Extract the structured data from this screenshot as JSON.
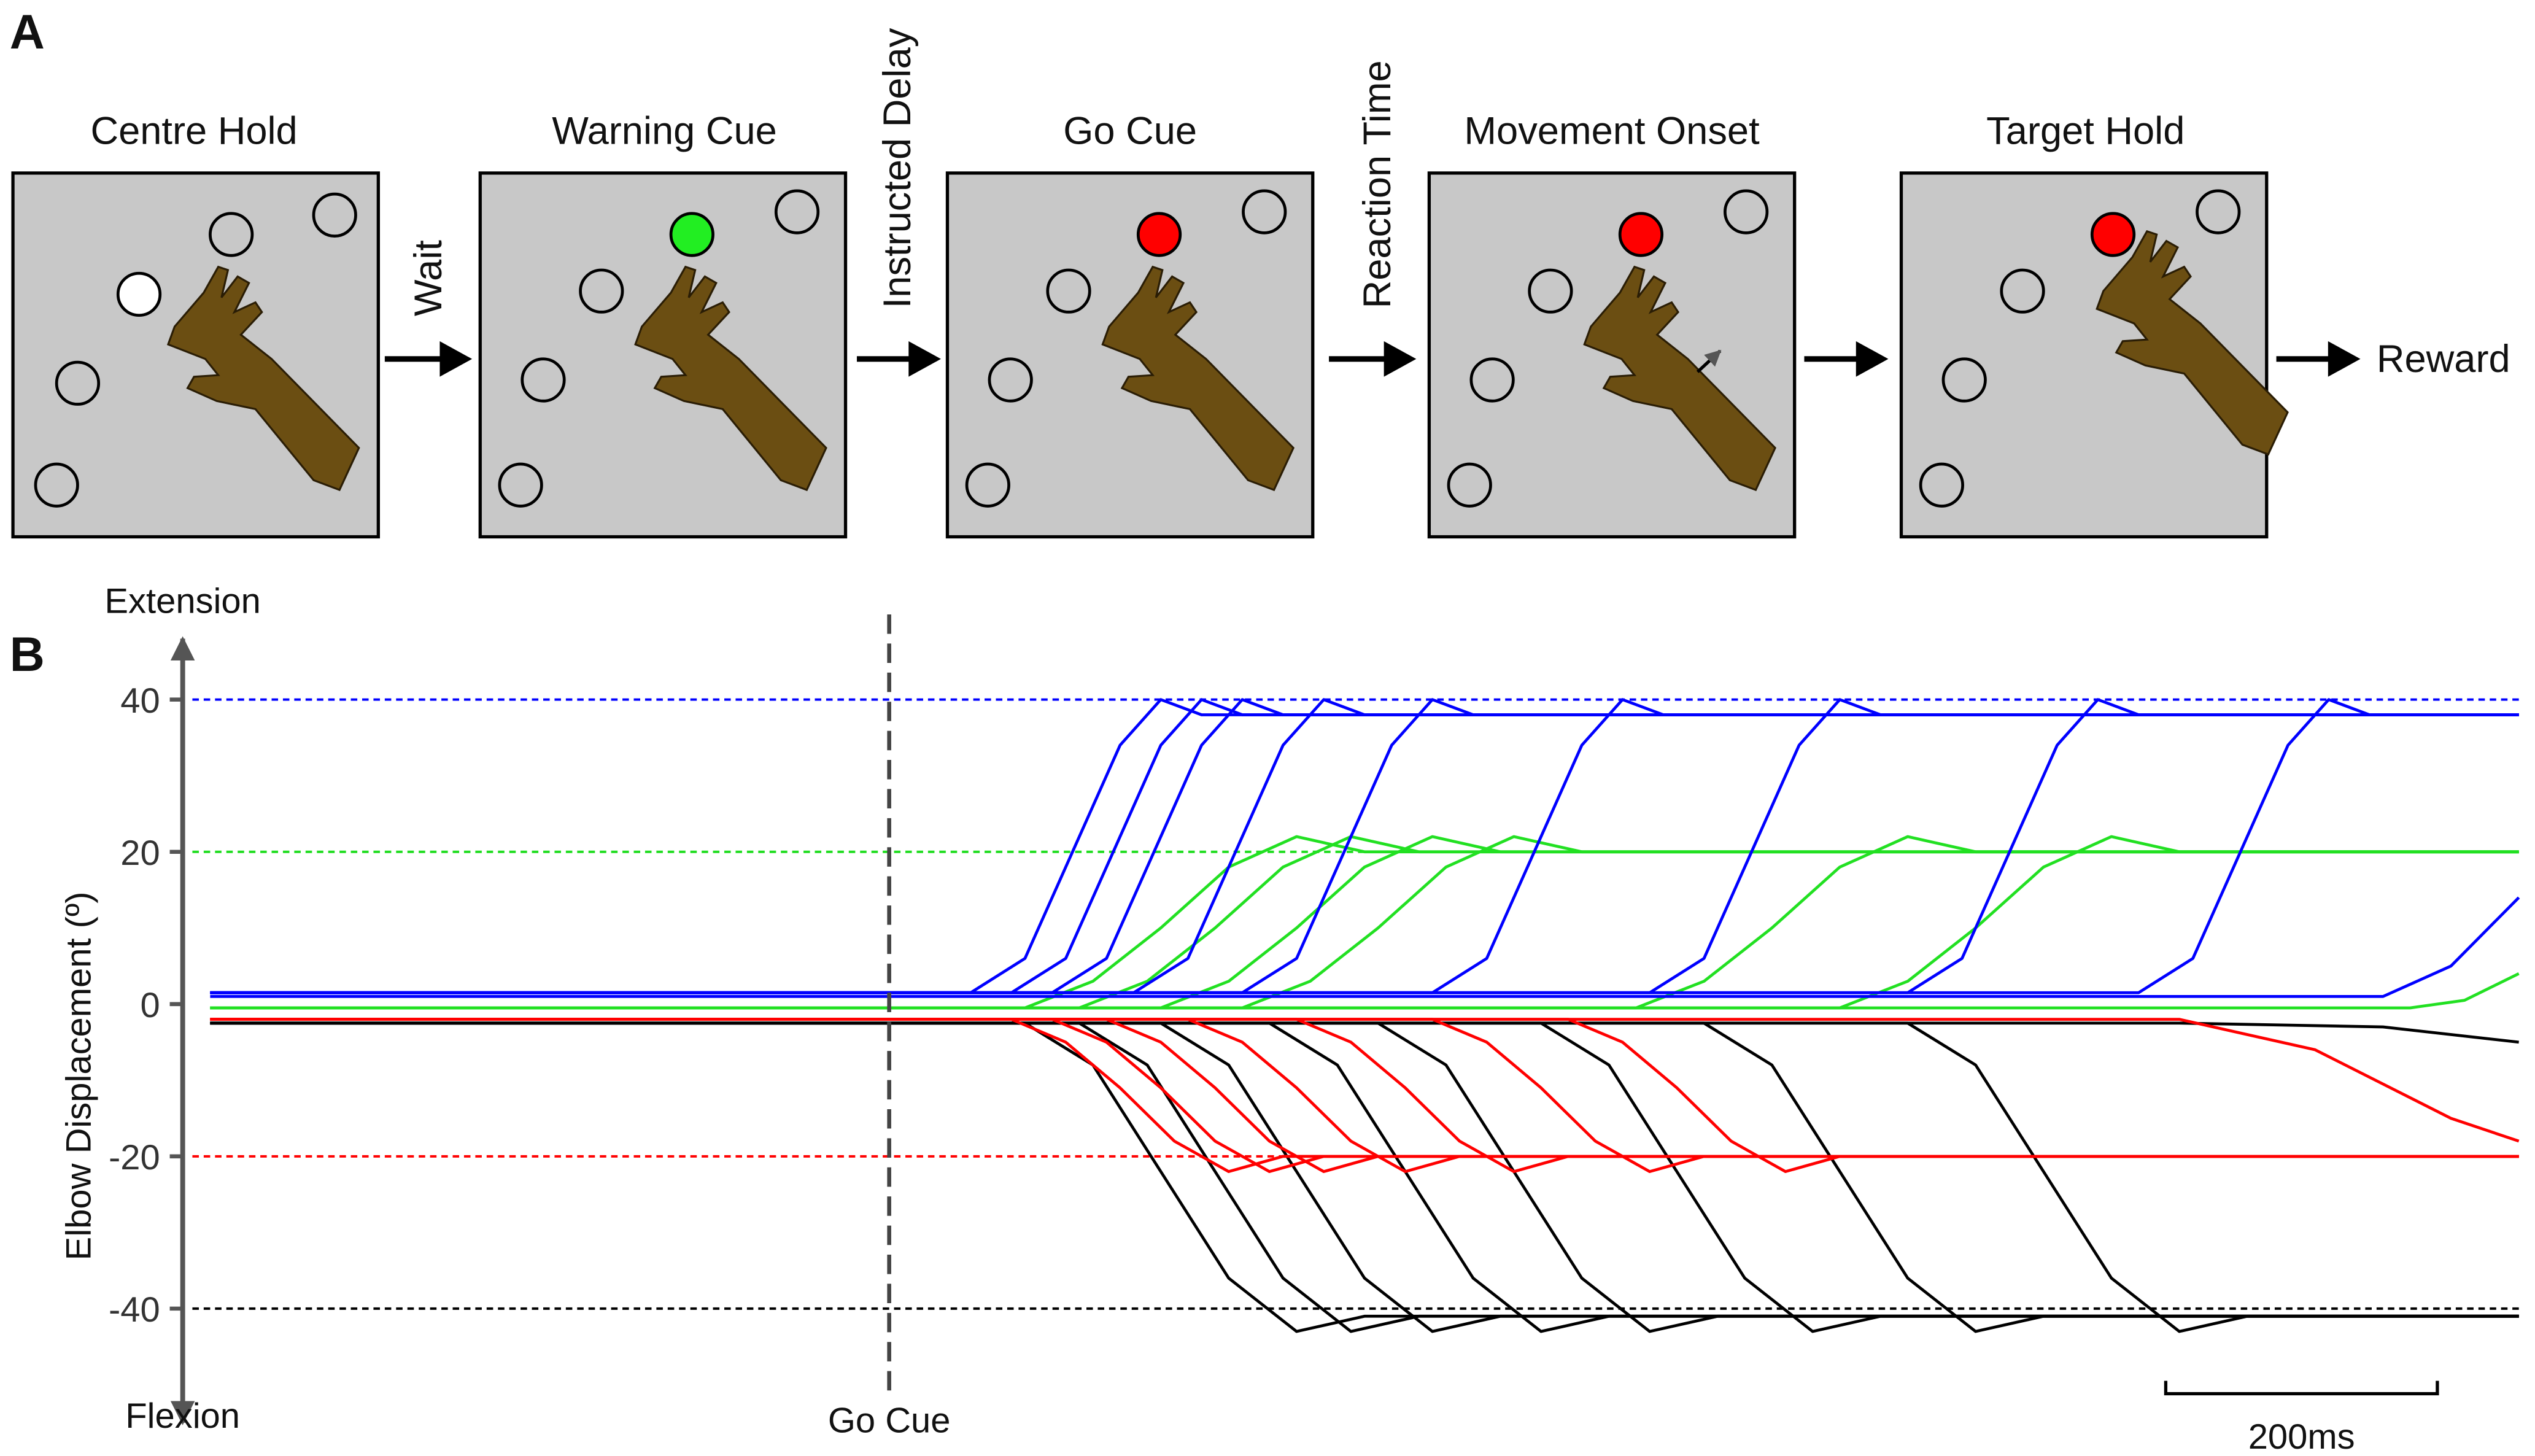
{
  "panel_a": {
    "label": "A",
    "stages": [
      "Centre Hold",
      "Warning Cue",
      "Go Cue",
      "Movement Onset",
      "Target Hold"
    ],
    "transitions": [
      "Wait",
      "Instructed Delay",
      "Reaction Time"
    ],
    "outcome": "Reward"
  },
  "chart_data": {
    "type": "line",
    "panel_label": "B",
    "y_label": "Elbow Displacement (º)",
    "y_top_label": "Extension",
    "y_bottom_label": "Flexion",
    "xlim": [
      0,
      1700
    ],
    "ylim": [
      -55,
      48
    ],
    "yticks": [
      -40,
      -20,
      0,
      20,
      40
    ],
    "reference_lines": [
      {
        "value": 40,
        "color": "#0000ff"
      },
      {
        "value": 20,
        "color": "#22dd22"
      },
      {
        "value": -20,
        "color": "#ff0000"
      },
      {
        "value": -40,
        "color": "#000000"
      }
    ],
    "event": {
      "x": 500,
      "text": "Go Cue"
    },
    "scale_bar": {
      "x": 1440,
      "length": 200,
      "label": "200ms"
    },
    "series": [
      {
        "color": "#22e022",
        "x": [
          0,
          600,
          650,
          700,
          750,
          800,
          850,
          1700
        ],
        "values": [
          -0.5,
          -0.5,
          3,
          10,
          18,
          22,
          20,
          20
        ]
      },
      {
        "color": "#22e022",
        "x": [
          0,
          640,
          690,
          740,
          790,
          840,
          890,
          1700
        ],
        "values": [
          -0.5,
          -0.5,
          3,
          10,
          18,
          22,
          20,
          20
        ]
      },
      {
        "color": "#22e022",
        "x": [
          0,
          700,
          750,
          800,
          850,
          900,
          950,
          1700
        ],
        "values": [
          -0.5,
          -0.5,
          3,
          10,
          18,
          22,
          20,
          20
        ]
      },
      {
        "color": "#22e022",
        "x": [
          0,
          760,
          810,
          860,
          910,
          960,
          1010,
          1700
        ],
        "values": [
          -0.5,
          -0.5,
          3,
          10,
          18,
          22,
          20,
          20
        ]
      },
      {
        "color": "#22e022",
        "x": [
          0,
          1050,
          1100,
          1150,
          1200,
          1250,
          1300,
          1700
        ],
        "values": [
          -0.5,
          -0.5,
          3,
          10,
          18,
          22,
          20,
          20
        ]
      },
      {
        "color": "#22e022",
        "x": [
          0,
          1200,
          1250,
          1300,
          1350,
          1400,
          1450,
          1700
        ],
        "values": [
          -0.5,
          -0.5,
          3,
          10,
          18,
          22,
          20,
          20
        ]
      },
      {
        "color": "#22e022",
        "x": [
          0,
          1620,
          1660,
          1700
        ],
        "values": [
          -0.5,
          -0.5,
          0.5,
          4
        ]
      },
      {
        "color": "#000000",
        "x": [
          0,
          600,
          650,
          700,
          750,
          800,
          850,
          1700
        ],
        "values": [
          -2.5,
          -2.5,
          -8,
          -22,
          -36,
          -43,
          -41,
          -41
        ]
      },
      {
        "color": "#000000",
        "x": [
          0,
          640,
          690,
          740,
          790,
          840,
          890,
          1700
        ],
        "values": [
          -2.5,
          -2.5,
          -8,
          -22,
          -36,
          -43,
          -41,
          -41
        ]
      },
      {
        "color": "#000000",
        "x": [
          0,
          700,
          750,
          800,
          850,
          900,
          950,
          1700
        ],
        "values": [
          -2.5,
          -2.5,
          -8,
          -22,
          -36,
          -43,
          -41,
          -41
        ]
      },
      {
        "color": "#000000",
        "x": [
          0,
          780,
          830,
          880,
          930,
          980,
          1030,
          1700
        ],
        "values": [
          -2.5,
          -2.5,
          -8,
          -22,
          -36,
          -43,
          -41,
          -41
        ]
      },
      {
        "color": "#000000",
        "x": [
          0,
          860,
          910,
          960,
          1010,
          1060,
          1110,
          1700
        ],
        "values": [
          -2.5,
          -2.5,
          -8,
          -22,
          -36,
          -43,
          -41,
          -41
        ]
      },
      {
        "color": "#000000",
        "x": [
          0,
          980,
          1030,
          1080,
          1130,
          1180,
          1230,
          1700
        ],
        "values": [
          -2.5,
          -2.5,
          -8,
          -22,
          -36,
          -43,
          -41,
          -41
        ]
      },
      {
        "color": "#000000",
        "x": [
          0,
          1100,
          1150,
          1200,
          1250,
          1300,
          1350,
          1700
        ],
        "values": [
          -2.5,
          -2.5,
          -8,
          -22,
          -36,
          -43,
          -41,
          -41
        ]
      },
      {
        "color": "#000000",
        "x": [
          0,
          1250,
          1300,
          1350,
          1400,
          1450,
          1500,
          1700
        ],
        "values": [
          -2.5,
          -2.5,
          -8,
          -22,
          -36,
          -43,
          -41,
          -41
        ]
      },
      {
        "color": "#000000",
        "x": [
          0,
          1450,
          1600,
          1700
        ],
        "values": [
          -2.5,
          -2.5,
          -3,
          -5
        ]
      },
      {
        "color": "#ff0000",
        "x": [
          0,
          590,
          630,
          670,
          710,
          750,
          790,
          1700
        ],
        "values": [
          -2,
          -2,
          -5,
          -11,
          -18,
          -22,
          -20,
          -20
        ]
      },
      {
        "color": "#ff0000",
        "x": [
          0,
          620,
          660,
          700,
          740,
          780,
          820,
          1700
        ],
        "values": [
          -2,
          -2,
          -5,
          -11,
          -18,
          -22,
          -20,
          -20
        ]
      },
      {
        "color": "#ff0000",
        "x": [
          0,
          660,
          700,
          740,
          780,
          820,
          860,
          1700
        ],
        "values": [
          -2,
          -2,
          -5,
          -11,
          -18,
          -22,
          -20,
          -20
        ]
      },
      {
        "color": "#ff0000",
        "x": [
          0,
          720,
          760,
          800,
          840,
          880,
          920,
          1700
        ],
        "values": [
          -2,
          -2,
          -5,
          -11,
          -18,
          -22,
          -20,
          -20
        ]
      },
      {
        "color": "#ff0000",
        "x": [
          0,
          800,
          840,
          880,
          920,
          960,
          1000,
          1700
        ],
        "values": [
          -2,
          -2,
          -5,
          -11,
          -18,
          -22,
          -20,
          -20
        ]
      },
      {
        "color": "#ff0000",
        "x": [
          0,
          900,
          940,
          980,
          1020,
          1060,
          1100,
          1700
        ],
        "values": [
          -2,
          -2,
          -5,
          -11,
          -18,
          -22,
          -20,
          -20
        ]
      },
      {
        "color": "#ff0000",
        "x": [
          0,
          1000,
          1040,
          1080,
          1120,
          1160,
          1200,
          1700
        ],
        "values": [
          -2,
          -2,
          -5,
          -11,
          -18,
          -22,
          -20,
          -20
        ]
      },
      {
        "color": "#ff0000",
        "x": [
          0,
          1450,
          1550,
          1650,
          1700
        ],
        "values": [
          -2,
          -2,
          -6,
          -15,
          -18
        ]
      },
      {
        "color": "#0000ff",
        "x": [
          0,
          560,
          600,
          635,
          670,
          700,
          730,
          1700
        ],
        "values": [
          1.5,
          1.5,
          6,
          20,
          34,
          40,
          38,
          38
        ]
      },
      {
        "color": "#0000ff",
        "x": [
          0,
          590,
          630,
          665,
          700,
          730,
          760,
          1700
        ],
        "values": [
          1.5,
          1.5,
          6,
          20,
          34,
          40,
          38,
          38
        ]
      },
      {
        "color": "#0000ff",
        "x": [
          0,
          620,
          660,
          695,
          730,
          760,
          790,
          1700
        ],
        "values": [
          1.5,
          1.5,
          6,
          20,
          34,
          40,
          38,
          38
        ]
      },
      {
        "color": "#0000ff",
        "x": [
          0,
          680,
          720,
          755,
          790,
          820,
          850,
          1700
        ],
        "values": [
          1.5,
          1.5,
          6,
          20,
          34,
          40,
          38,
          38
        ]
      },
      {
        "color": "#0000ff",
        "x": [
          0,
          760,
          800,
          835,
          870,
          900,
          930,
          1700
        ],
        "values": [
          1.5,
          1.5,
          6,
          20,
          34,
          40,
          38,
          38
        ]
      },
      {
        "color": "#0000ff",
        "x": [
          0,
          900,
          940,
          975,
          1010,
          1040,
          1070,
          1700
        ],
        "values": [
          1.5,
          1.5,
          6,
          20,
          34,
          40,
          38,
          38
        ]
      },
      {
        "color": "#0000ff",
        "x": [
          0,
          1060,
          1100,
          1135,
          1170,
          1200,
          1230,
          1700
        ],
        "values": [
          1.5,
          1.5,
          6,
          20,
          34,
          40,
          38,
          38
        ]
      },
      {
        "color": "#0000ff",
        "x": [
          0,
          1250,
          1290,
          1325,
          1360,
          1390,
          1420,
          1700
        ],
        "values": [
          1.5,
          1.5,
          6,
          20,
          34,
          40,
          38,
          38
        ]
      },
      {
        "color": "#0000ff",
        "x": [
          0,
          1420,
          1460,
          1495,
          1530,
          1560,
          1590,
          1700
        ],
        "values": [
          1.5,
          1.5,
          6,
          20,
          34,
          40,
          38,
          38
        ]
      },
      {
        "color": "#0000ff",
        "x": [
          0,
          1600,
          1650,
          1700
        ],
        "values": [
          1,
          1,
          5,
          14
        ]
      }
    ]
  }
}
